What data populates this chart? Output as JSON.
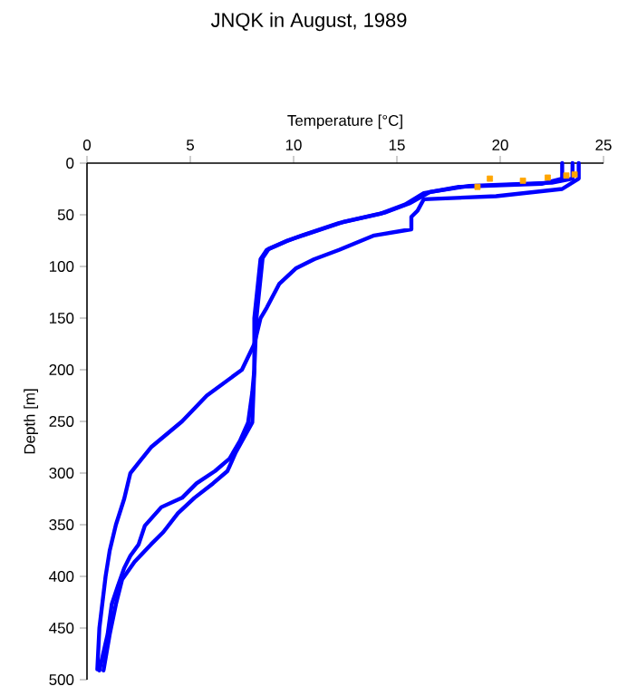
{
  "chart_data": {
    "type": "line",
    "title": "JNQK in August, 1989",
    "xlabel": "Temperature [°C]",
    "ylabel": "Depth [m]",
    "xlim": [
      0,
      25
    ],
    "xticks": [
      0,
      5,
      10,
      15,
      20,
      25
    ],
    "ylim": [
      500,
      0
    ],
    "yticks": [
      0,
      50,
      100,
      150,
      200,
      250,
      300,
      350,
      400,
      450,
      500
    ],
    "series": [
      {
        "color": "#0000ff",
        "x": [
          23.8,
          23.8,
          23.0,
          19.8,
          16.3,
          16.0,
          15.7,
          15.7,
          13.9,
          12.2,
          11.0,
          10.1,
          9.3,
          8.7,
          8.4,
          8.1,
          7.5,
          5.8,
          4.6,
          3.1,
          2.1,
          1.8,
          1.4,
          1.1,
          0.9,
          0.6,
          0.5
        ],
        "values": [
          0,
          15,
          25,
          32,
          35,
          46,
          52,
          64,
          70,
          84,
          93,
          102,
          117,
          140,
          150,
          175,
          200,
          225,
          250,
          275,
          300,
          325,
          350,
          375,
          400,
          450,
          490
        ]
      },
      {
        "color": "#0000ff",
        "x": [
          23.0,
          23.0,
          22.0,
          18.0,
          16.3,
          15.4,
          14.2,
          12.2,
          10.4,
          9.6,
          8.7,
          8.4,
          8.1,
          8.1,
          8.0,
          7.8,
          7.4,
          6.9,
          6.2,
          5.3,
          4.6,
          3.6,
          2.8,
          2.5,
          2.1,
          1.8,
          1.5,
          1.2,
          1.0,
          0.6
        ],
        "values": [
          0,
          15,
          20,
          23,
          29,
          40,
          49,
          58,
          70,
          76,
          84,
          93,
          150,
          200,
          222,
          251,
          269,
          286,
          298,
          310,
          324,
          333,
          351,
          369,
          380,
          392,
          409,
          427,
          456,
          491
        ]
      },
      {
        "color": "#0000ff",
        "x": [
          23.5,
          23.5,
          22.5,
          18.5,
          16.6,
          15.6,
          14.4,
          12.4,
          10.6,
          9.7,
          8.8,
          8.5,
          8.2,
          8.1,
          8.0,
          7.2,
          6.8,
          6.1,
          5.2,
          4.4,
          3.7,
          3.1,
          2.3,
          1.7,
          1.4,
          1.1,
          0.8
        ],
        "values": [
          0,
          15,
          19,
          22,
          28,
          39,
          48,
          57,
          69,
          75,
          83,
          92,
          150,
          200,
          251,
          280,
          298,
          310,
          324,
          339,
          357,
          369,
          386,
          403,
          427,
          456,
          491
        ]
      },
      {
        "type": "scatter",
        "marker": "square",
        "color": "#ffa500",
        "x": [
          18.9,
          19.5,
          21.1,
          22.3,
          23.2,
          23.6
        ],
        "values": [
          23,
          15,
          17,
          14,
          12,
          11
        ]
      }
    ]
  }
}
